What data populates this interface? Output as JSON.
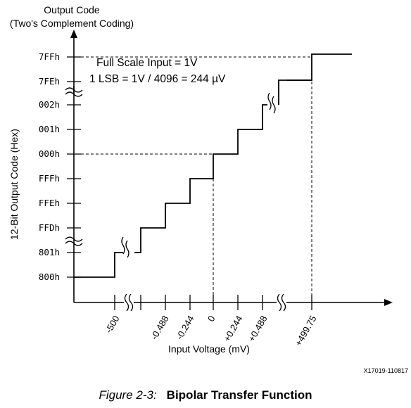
{
  "header": {
    "line1": "Output Code",
    "line2": "(Two's Complement Coding)"
  },
  "y_axis": {
    "title": "12-Bit Output Code (Hex)",
    "ticks": [
      "7FFh",
      "7FEh",
      "002h",
      "001h",
      "000h",
      "FFFh",
      "FFEh",
      "FFDh",
      "801h",
      "800h"
    ]
  },
  "x_axis": {
    "title": "Input Voltage (mV)",
    "ticks": [
      "-500",
      "-0.488",
      "-0.244",
      "0",
      "+0.244",
      "+0.488",
      "+499.75"
    ]
  },
  "annotations": {
    "full_scale": "Full Scale Input = 1V",
    "lsb": "1 LSB = 1V / 4096 = 244 µV"
  },
  "figure_id": "X17019-110817",
  "caption": {
    "label": "Figure 2-3:",
    "title": "Bipolar Transfer Function"
  }
}
